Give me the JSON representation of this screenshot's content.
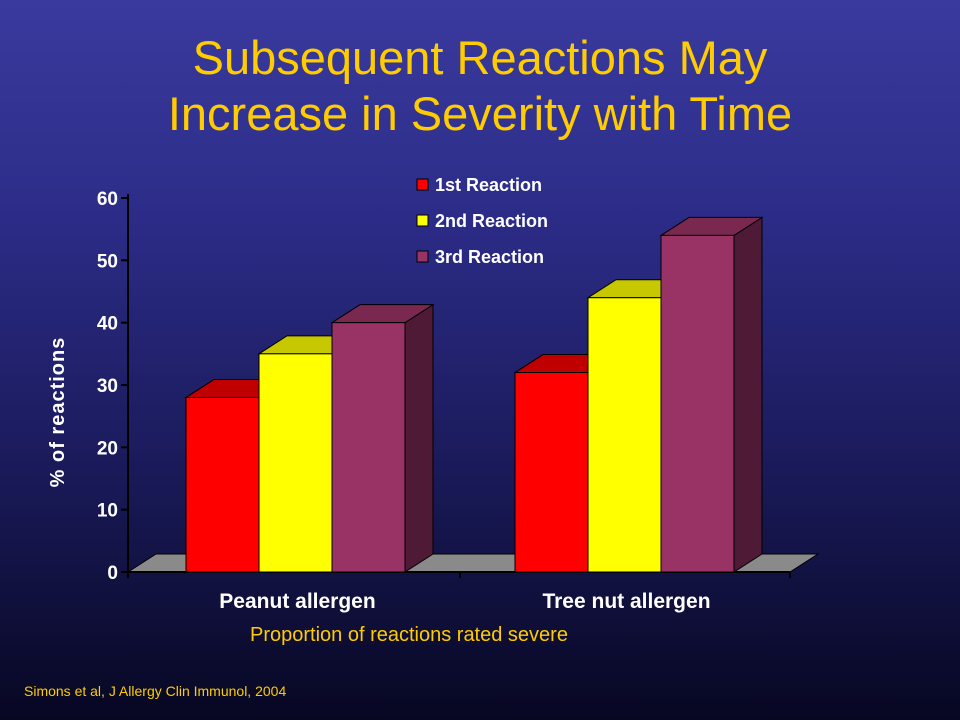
{
  "title_line1": "Subsequent Reactions May",
  "title_line2": "Increase in Severity with Time",
  "caption": "Proportion of reactions rated severe",
  "citation": "Simons et al, J Allergy Clin Immunol, 2004",
  "chart_data": {
    "type": "bar",
    "categories": [
      "Peanut allergen",
      "Tree nut allergen"
    ],
    "series": [
      {
        "name": "1st Reaction",
        "values": [
          28,
          32
        ],
        "color": "#ff0000",
        "top": "#c00000",
        "side": "#800000"
      },
      {
        "name": "2nd Reaction",
        "values": [
          35,
          44
        ],
        "color": "#ffff00",
        "top": "#c8c800",
        "side": "#8c8c00"
      },
      {
        "name": "3rd Reaction",
        "values": [
          40,
          54
        ],
        "color": "#993366",
        "top": "#7a2850",
        "side": "#4e1a36"
      }
    ],
    "ylabel": "% of reactions",
    "xlabel": "",
    "ylim": [
      0,
      60
    ],
    "yticks": [
      0,
      10,
      20,
      30,
      40,
      50,
      60
    ],
    "legend_position": "top-right",
    "grid": false
  }
}
